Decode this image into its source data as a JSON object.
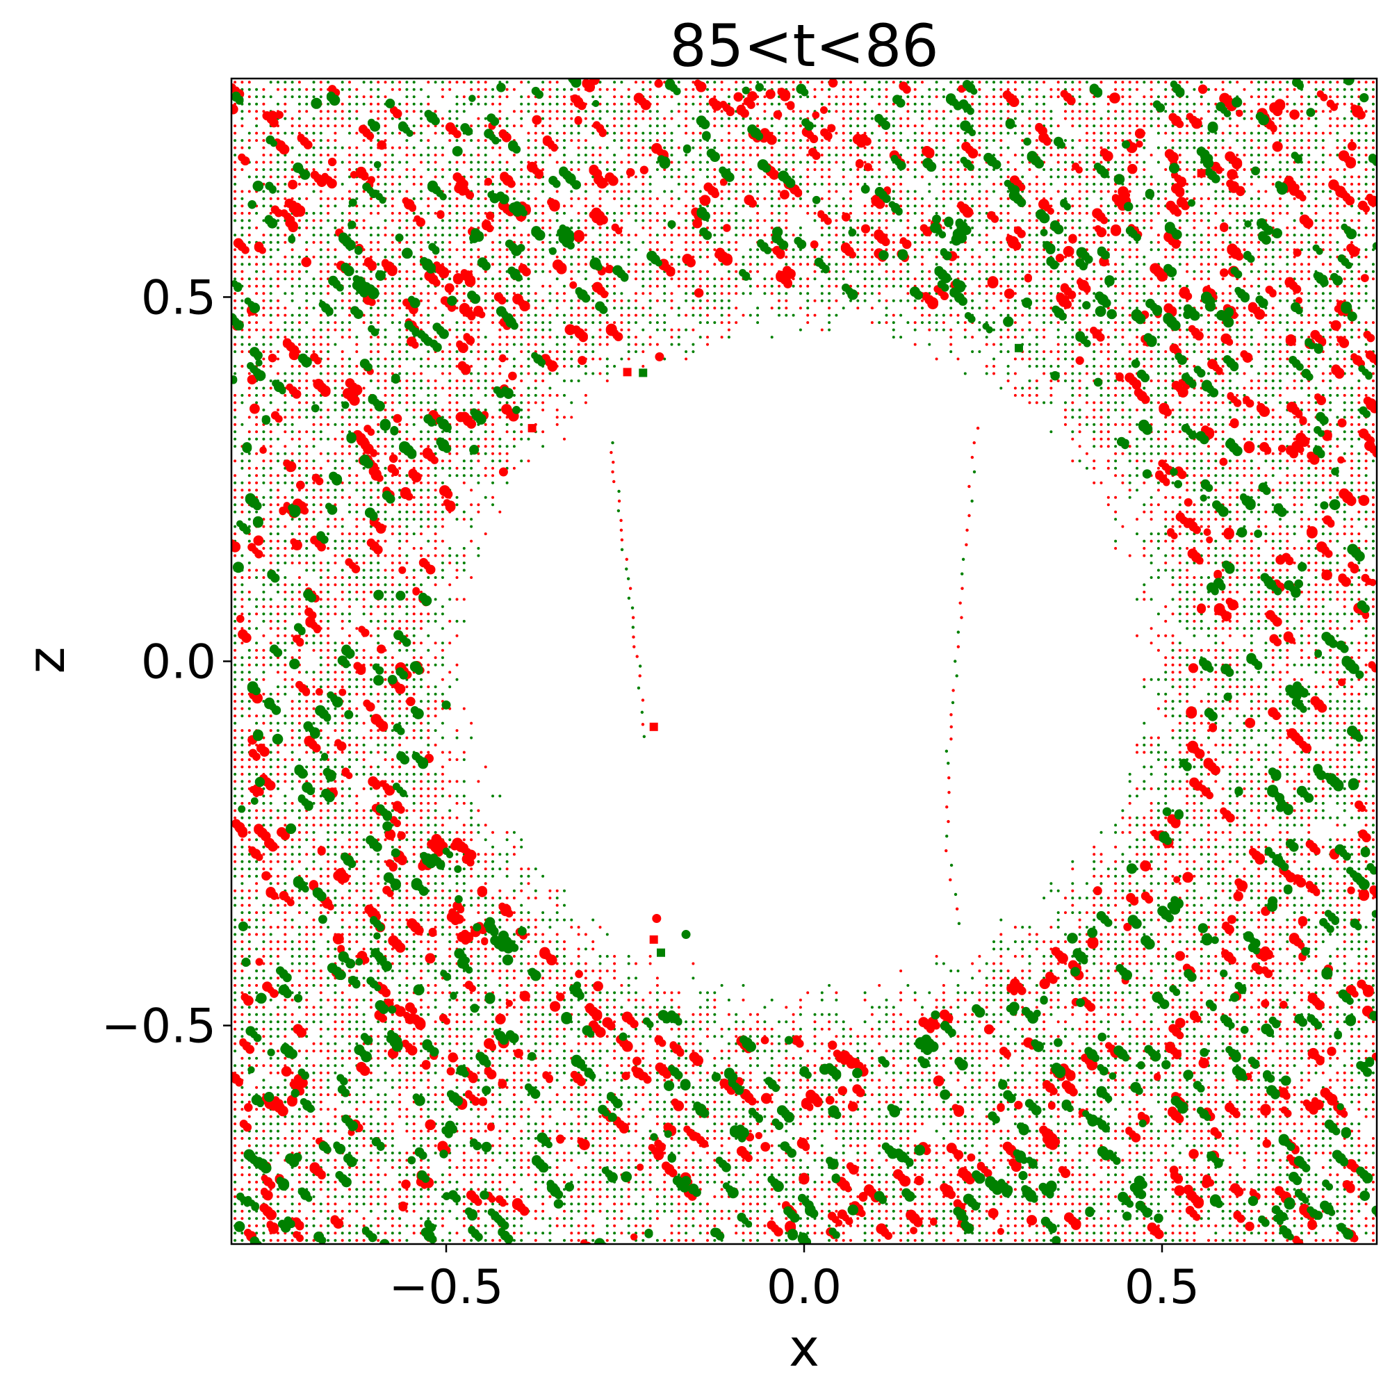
{
  "chart_data": {
    "type": "scatter",
    "title": "85<t<86",
    "xlabel": "x",
    "ylabel": "z",
    "xlim": [
      -0.8,
      0.8
    ],
    "ylim": [
      -0.8,
      0.8
    ],
    "xticks": [
      -0.5,
      0.0,
      0.5
    ],
    "yticks": [
      -0.5,
      0.0,
      0.5
    ],
    "xtick_labels": [
      "−0.5",
      "0.0",
      "0.5"
    ],
    "ytick_labels": [
      "−0.5",
      "0.0",
      "0.5"
    ],
    "grid": false,
    "legend": "none",
    "colors": {
      "series_a": "#ff0000",
      "series_b": "#008000"
    },
    "particle_field": {
      "description_values": "dense lattice of particles filling the box outside a roughly circular void",
      "void_center": [
        0.0,
        0.0
      ],
      "void_radius": 0.5,
      "lattice_step": 0.01
    },
    "series": [
      {
        "color": "#ff0000",
        "highlighted_points": [
          [
            -0.247,
            0.397
          ],
          [
            -0.202,
            0.418
          ],
          [
            -0.21,
            -0.09
          ],
          [
            -0.206,
            -0.353
          ],
          [
            -0.21,
            -0.382
          ],
          [
            0.41,
            -0.315
          ],
          [
            0.555,
            0.67
          ],
          [
            -0.31,
            0.413
          ],
          [
            -0.38,
            0.32
          ],
          [
            -0.42,
            0.26
          ]
        ]
      },
      {
        "color": "#008000",
        "highlighted_points": [
          [
            -0.225,
            0.396
          ],
          [
            -0.165,
            -0.375
          ],
          [
            -0.2,
            -0.4
          ],
          [
            -0.5,
            -0.06
          ],
          [
            0.3,
            0.43
          ]
        ]
      }
    ],
    "internal_traces": [
      {
        "points": [
          [
            -0.27,
            0.3
          ],
          [
            -0.26,
            0.22
          ],
          [
            -0.25,
            0.14
          ],
          [
            -0.24,
            0.06
          ],
          [
            -0.23,
            -0.02
          ],
          [
            -0.22,
            -0.12
          ]
        ]
      },
      {
        "points": [
          [
            0.24,
            0.32
          ],
          [
            0.23,
            0.2
          ],
          [
            0.22,
            0.08
          ],
          [
            0.21,
            -0.04
          ],
          [
            0.2,
            -0.14
          ],
          [
            0.2,
            -0.26
          ],
          [
            0.22,
            -0.38
          ]
        ]
      }
    ]
  }
}
